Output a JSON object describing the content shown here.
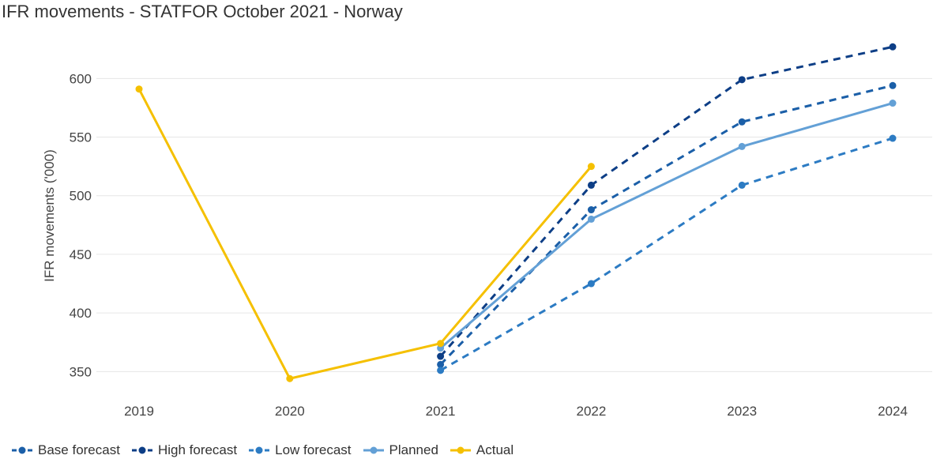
{
  "chart_data": {
    "type": "line",
    "title": "IFR movements - STATFOR October 2021 - Norway",
    "ylabel": "IFR movements ('000)",
    "xlabel": "",
    "categories": [
      "2019",
      "2020",
      "2021",
      "2022",
      "2023",
      "2024"
    ],
    "ylim": [
      330,
      640
    ],
    "yticks": [
      350,
      400,
      450,
      500,
      550,
      600
    ],
    "grid": true,
    "legend_position": "bottom-left",
    "series": [
      {
        "name": "Base forecast",
        "color": "#1b5fa8",
        "dash": true,
        "points": [
          [
            "2021",
            356
          ],
          [
            "2022",
            488
          ],
          [
            "2023",
            563
          ],
          [
            "2024",
            594
          ]
        ]
      },
      {
        "name": "High forecast",
        "color": "#0d3e86",
        "dash": true,
        "points": [
          [
            "2021",
            363
          ],
          [
            "2022",
            509
          ],
          [
            "2023",
            599
          ],
          [
            "2024",
            627
          ]
        ]
      },
      {
        "name": "Low forecast",
        "color": "#2c7bc3",
        "dash": true,
        "points": [
          [
            "2021",
            351
          ],
          [
            "2022",
            425
          ],
          [
            "2023",
            509
          ],
          [
            "2024",
            549
          ]
        ]
      },
      {
        "name": "Planned",
        "color": "#63a0d6",
        "dash": false,
        "points": [
          [
            "2021",
            370
          ],
          [
            "2022",
            480
          ],
          [
            "2023",
            542
          ],
          [
            "2024",
            579
          ]
        ]
      },
      {
        "name": "Actual",
        "color": "#f5c000",
        "dash": false,
        "points": [
          [
            "2019",
            591
          ],
          [
            "2020",
            344
          ],
          [
            "2021",
            374
          ],
          [
            "2022",
            525
          ]
        ]
      }
    ]
  }
}
